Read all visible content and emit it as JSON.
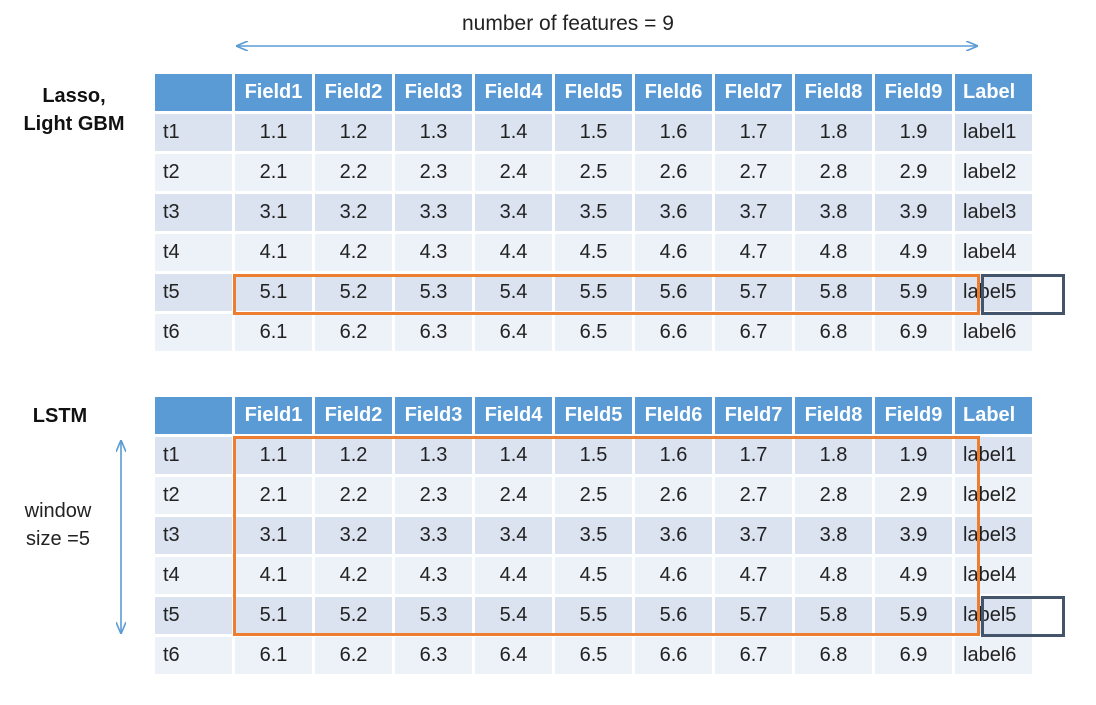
{
  "features_caption": "number of features = 9",
  "window_caption": "window\nsize =5",
  "columns": [
    "",
    "Field1",
    "Field2",
    "Field3",
    "Field4",
    "FIeld5",
    "FIeld6",
    "FIeld7",
    "Field8",
    "Field9",
    "Label"
  ],
  "rows": [
    {
      "t": "t1",
      "vals": [
        "1.1",
        "1.2",
        "1.3",
        "1.4",
        "1.5",
        "1.6",
        "1.7",
        "1.8",
        "1.9"
      ],
      "label": "label1"
    },
    {
      "t": "t2",
      "vals": [
        "2.1",
        "2.2",
        "2.3",
        "2.4",
        "2.5",
        "2.6",
        "2.7",
        "2.8",
        "2.9"
      ],
      "label": "label2"
    },
    {
      "t": "t3",
      "vals": [
        "3.1",
        "3.2",
        "3.3",
        "3.4",
        "3.5",
        "3.6",
        "3.7",
        "3.8",
        "3.9"
      ],
      "label": "label3"
    },
    {
      "t": "t4",
      "vals": [
        "4.1",
        "4.2",
        "4.3",
        "4.4",
        "4.5",
        "4.6",
        "4.7",
        "4.8",
        "4.9"
      ],
      "label": "label4"
    },
    {
      "t": "t5",
      "vals": [
        "5.1",
        "5.2",
        "5.3",
        "5.4",
        "5.5",
        "5.6",
        "5.7",
        "5.8",
        "5.9"
      ],
      "label": "label5"
    },
    {
      "t": "t6",
      "vals": [
        "6.1",
        "6.2",
        "6.3",
        "6.4",
        "6.5",
        "6.6",
        "6.7",
        "6.8",
        "6.9"
      ],
      "label": "label6"
    }
  ],
  "tables": [
    {
      "id": "top",
      "model_label": "Lasso,\nLight GBM",
      "highlight_rows": [
        5
      ]
    },
    {
      "id": "bottom",
      "model_label": "LSTM",
      "highlight_rows": [
        1,
        2,
        3,
        4,
        5
      ]
    }
  ],
  "colors": {
    "header": "#5b9bd5",
    "row_dark": "#dbe3f0",
    "row_light": "#edf1f8",
    "window_box": "#ed7d31",
    "target_box": "#44546a",
    "arrow": "#5b9bd5"
  }
}
